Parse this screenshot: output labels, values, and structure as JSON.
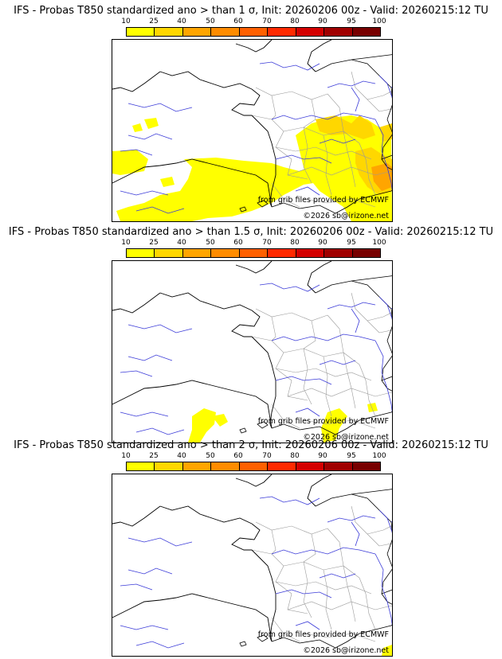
{
  "colors": {
    "coastline": "#000000",
    "rivers": "#3a3ad8",
    "borders": "#9a9a9a",
    "palette": [
      "#ffff00",
      "#ffd700",
      "#ffa500",
      "#ff8c00",
      "#ff6000",
      "#ff2a00",
      "#d40000",
      "#a00000",
      "#780000",
      "#500000"
    ]
  },
  "colorbar": {
    "ticks": [
      "10",
      "25",
      "40",
      "50",
      "60",
      "70",
      "80",
      "90",
      "95",
      "100"
    ]
  },
  "panels": [
    {
      "title": "IFS - Probas T850  standardized ano > than 1 σ, Init: 20260206 00z - Valid: 20260215:12 TU",
      "credit_source": "from grib files provided by ECMWF",
      "credit_copyright": "©2026 sb@irizone.net"
    },
    {
      "title": "IFS - Probas T850  standardized ano > than 1.5 σ, Init: 20260206 00z - Valid: 20260215:12 TU",
      "credit_source": "from grib files provided by ECMWF",
      "credit_copyright": "©2026 sb@irizone.net"
    },
    {
      "title": "IFS - Probas T850  standardized ano > than 2 σ, Init: 20260206 00z - Valid: 20260215:12 TU",
      "credit_source": "from grib files provided by ECMWF",
      "credit_copyright": "©2026 sb@irizone.net"
    }
  ]
}
